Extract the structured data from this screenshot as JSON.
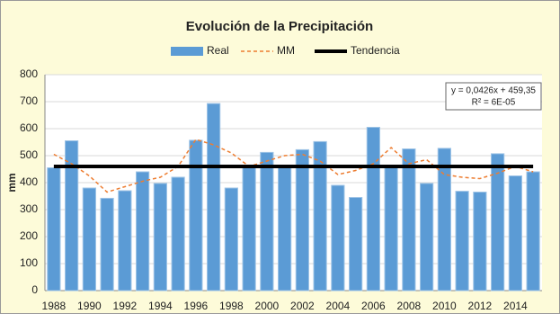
{
  "chart_data": {
    "type": "combo",
    "title": "Evolución de la Precipitación",
    "y_label": "mm",
    "categories": [
      "1988",
      null,
      "1990",
      null,
      "1992",
      null,
      "1994",
      null,
      "1996",
      null,
      "1998",
      null,
      "2000",
      null,
      "2002",
      null,
      "2004",
      null,
      "2006",
      null,
      "2008",
      null,
      "2010",
      null,
      "2012",
      null,
      "2014",
      null
    ],
    "series": [
      {
        "name": "Real",
        "type": "bar",
        "color": "#5b9bd5",
        "values": [
          455,
          555,
          380,
          342,
          370,
          440,
          397,
          420,
          557,
          693,
          380,
          458,
          512,
          462,
          522,
          552,
          390,
          345,
          605,
          458,
          525,
          397,
          527,
          368,
          365,
          507,
          425,
          440
        ]
      },
      {
        "name": "MM",
        "type": "line",
        "dashed": true,
        "color": "#ed7d31",
        "values": [
          505,
          470,
          425,
          365,
          385,
          405,
          420,
          460,
          560,
          540,
          510,
          460,
          480,
          500,
          505,
          480,
          430,
          445,
          470,
          530,
          470,
          485,
          430,
          420,
          415,
          435,
          460,
          440
        ]
      },
      {
        "name": "Tendencia",
        "type": "line",
        "dashed": false,
        "color": "#000000",
        "values": [
          460,
          460,
          460,
          460,
          460,
          460,
          460,
          460,
          460,
          460,
          460,
          460,
          460,
          460,
          460,
          460,
          460,
          460,
          460,
          460,
          460,
          460,
          460,
          460,
          460,
          460,
          460,
          460
        ]
      }
    ],
    "annotations": [
      "y = 0,0426x + 459,35",
      "R² = 6E-05"
    ],
    "ylim": [
      0,
      800
    ],
    "yticks": [
      0,
      100,
      200,
      300,
      400,
      500,
      600,
      700,
      800
    ],
    "grid": true
  }
}
